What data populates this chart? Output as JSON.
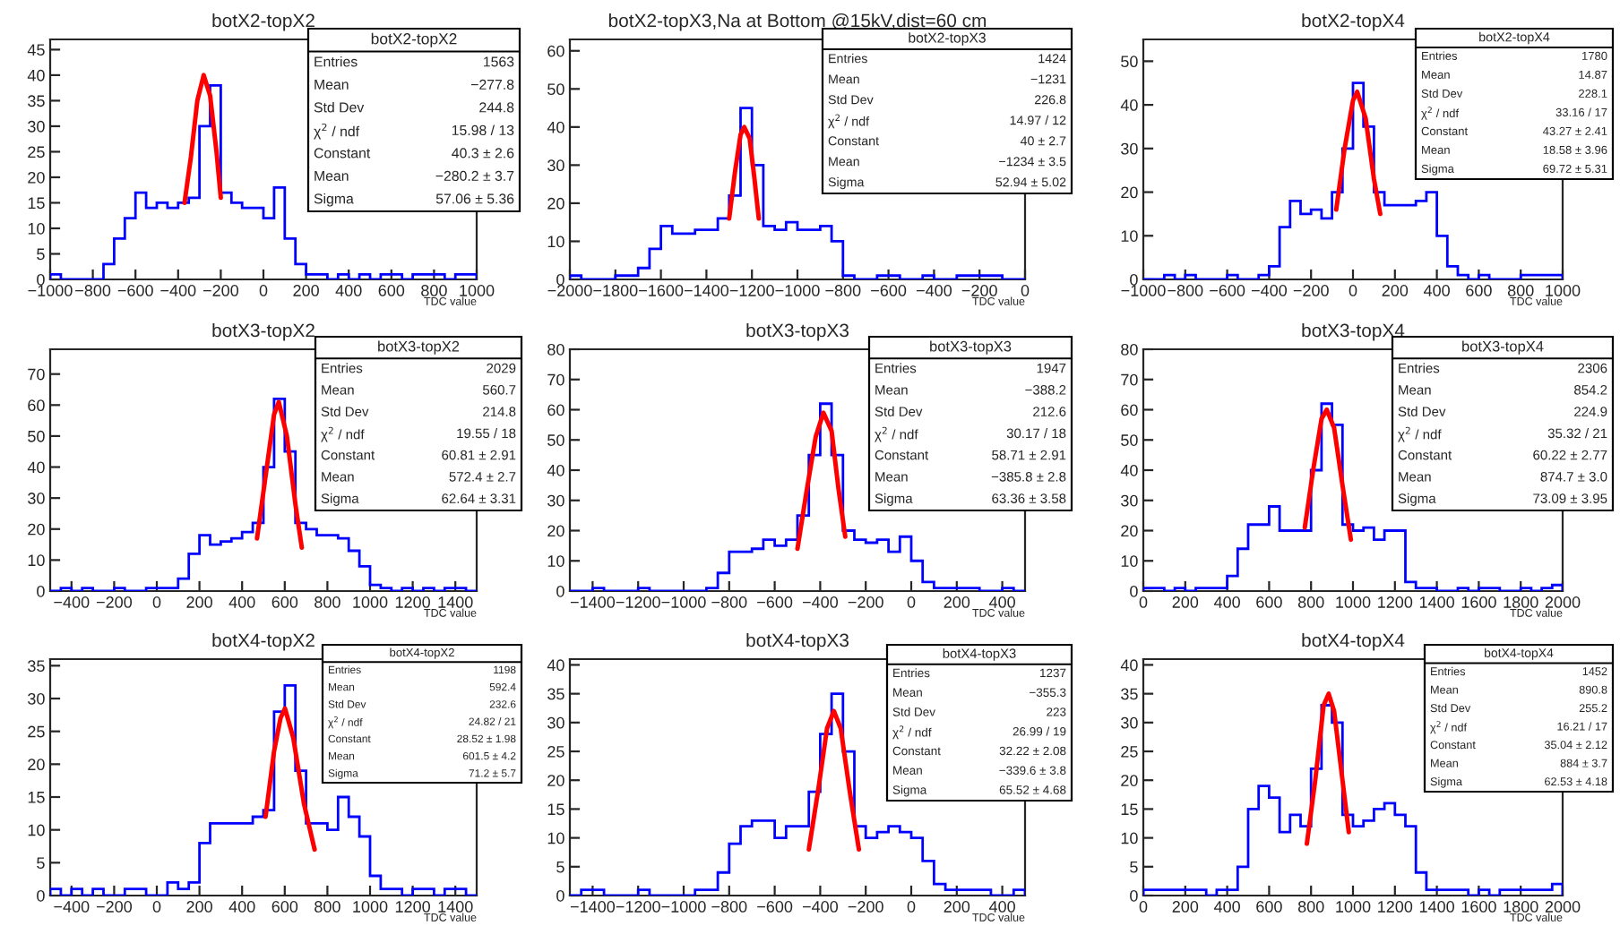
{
  "chart_data": [
    {
      "type": "histogram",
      "title": "botX2-topX2",
      "xlabel": "TDC value",
      "xlim": [
        -1000,
        1000
      ],
      "xticks": [
        -1000,
        -800,
        -600,
        -400,
        -200,
        0,
        200,
        400,
        600,
        800,
        1000
      ],
      "ylim": [
        0,
        47
      ],
      "yticks": [
        0,
        5,
        10,
        15,
        20,
        25,
        30,
        35,
        40,
        45
      ],
      "annotations": [
        "botX2-topX2",
        "Entries\t1563",
        "Mean\t−277.8",
        "Std Dev\t244.8",
        "χ$^{2}$ / ndf\t15.98 / 13",
        "Constant\t40.3 ± 2.6",
        "Mean\t−280.2 ± 3.7",
        "Sigma\t57.06 ± 5.36"
      ],
      "series": [
        {
          "type": "histogram",
          "color": "#0000ff",
          "bins": [
            -1000,
            -950,
            -900,
            -850,
            -800,
            -750,
            -700,
            -650,
            -600,
            -550,
            -500,
            -450,
            -400,
            -350,
            -300,
            -250,
            -200,
            -150,
            -100,
            -50,
            0,
            50,
            100,
            150,
            200,
            250,
            300,
            350,
            400,
            450,
            500,
            550,
            600,
            650,
            700,
            750,
            800,
            850,
            900,
            950,
            1000
          ],
          "values": [
            1,
            0,
            0,
            0,
            0,
            3,
            8,
            12,
            17,
            14,
            15,
            14,
            15,
            16,
            30,
            38,
            17,
            15,
            14,
            14,
            12,
            18,
            8,
            3,
            1,
            1,
            0,
            1,
            0,
            1,
            0,
            1,
            1,
            0,
            1,
            1,
            1,
            0,
            1,
            1
          ]
        },
        {
          "type": "line",
          "color": "#ff0000",
          "x": [
            -370,
            -340,
            -310,
            -280,
            -250,
            -220,
            -200
          ],
          "values": [
            15,
            24,
            35,
            40,
            36,
            25,
            16
          ]
        }
      ]
    },
    {
      "type": "histogram",
      "title": "botX2-topX3,Na at Bottom @15kV,dist=60 cm",
      "xlabel": "TDC value",
      "xlim": [
        -2000,
        0
      ],
      "xticks": [
        -2000,
        -1800,
        -1600,
        -1400,
        -1200,
        -1000,
        -800,
        -600,
        -400,
        -200,
        0
      ],
      "ylim": [
        0,
        63
      ],
      "yticks": [
        0,
        10,
        20,
        30,
        40,
        50,
        60
      ],
      "annotations": [
        "botX2-topX3",
        "Entries\t1424",
        "Mean\t−1231",
        "Std Dev\t226.8",
        "χ$^{2}$ / ndf\t14.97 / 12",
        "Constant\t40 ± 2.7",
        "Mean\t−1234 ± 3.5",
        "Sigma\t52.94 ± 5.02"
      ],
      "series": [
        {
          "type": "histogram",
          "color": "#0000ff",
          "bins": [
            -2000,
            -1950,
            -1900,
            -1850,
            -1800,
            -1750,
            -1700,
            -1650,
            -1600,
            -1550,
            -1500,
            -1450,
            -1400,
            -1350,
            -1300,
            -1250,
            -1200,
            -1150,
            -1100,
            -1050,
            -1000,
            -950,
            -900,
            -850,
            -800,
            -750,
            -700,
            -650,
            -600,
            -550,
            -500,
            -450,
            -400,
            -350,
            -300,
            -250,
            -200,
            -150,
            -100,
            -50,
            0
          ],
          "values": [
            1,
            0,
            0,
            0,
            1,
            1,
            3,
            8,
            14,
            12,
            12,
            13,
            13,
            16,
            22,
            45,
            30,
            14,
            13,
            15,
            13,
            13,
            14,
            10,
            1,
            0,
            0,
            1,
            1,
            0,
            0,
            1,
            0,
            0,
            1,
            1,
            1,
            1,
            0,
            0
          ]
        },
        {
          "type": "line",
          "color": "#ff0000",
          "x": [
            -1300,
            -1275,
            -1250,
            -1234,
            -1210,
            -1190,
            -1170
          ],
          "values": [
            16,
            28,
            38,
            40,
            37,
            27,
            16
          ]
        }
      ]
    },
    {
      "type": "histogram",
      "title": "botX2-topX4",
      "xlabel": "TDC value",
      "xlim": [
        -1000,
        1000
      ],
      "xticks": [
        -1000,
        -800,
        -600,
        -400,
        -200,
        0,
        200,
        400,
        600,
        800,
        1000
      ],
      "ylim": [
        0,
        55
      ],
      "yticks": [
        0,
        10,
        20,
        30,
        40,
        50
      ],
      "annotations": [
        "botX2-topX4",
        "Entries\t1780",
        "Mean\t14.87",
        "Std Dev\t228.1",
        "χ$^{2}$ / ndf\t33.16 / 17",
        "Constant\t43.27 ± 2.41",
        "Mean\t18.58 ± 3.96",
        "Sigma\t69.72 ± 5.31"
      ],
      "series": [
        {
          "type": "histogram",
          "color": "#0000ff",
          "bins": [
            -1000,
            -950,
            -900,
            -850,
            -800,
            -750,
            -700,
            -650,
            -600,
            -550,
            -500,
            -450,
            -400,
            -350,
            -300,
            -250,
            -200,
            -150,
            -100,
            -50,
            0,
            50,
            100,
            150,
            200,
            250,
            300,
            350,
            400,
            450,
            500,
            550,
            600,
            650,
            700,
            750,
            800,
            850,
            900,
            950,
            1000
          ],
          "values": [
            0,
            0,
            1,
            0,
            1,
            0,
            0,
            0,
            1,
            0,
            0,
            1,
            3,
            12,
            18,
            15,
            16,
            14,
            20,
            30,
            45,
            35,
            20,
            17,
            17,
            17,
            18,
            20,
            10,
            3,
            1,
            0,
            1,
            0,
            0,
            0,
            1,
            1,
            1,
            1
          ]
        },
        {
          "type": "line",
          "color": "#ff0000",
          "x": [
            -80,
            -40,
            0,
            20,
            60,
            100,
            130
          ],
          "values": [
            16,
            30,
            41,
            43,
            37,
            23,
            15
          ]
        }
      ]
    },
    {
      "type": "histogram",
      "title": "botX3-topX2",
      "xlabel": "TDC value",
      "xlim": [
        -500,
        1500
      ],
      "xticks": [
        -400,
        -200,
        0,
        200,
        400,
        600,
        800,
        1000,
        1200,
        1400
      ],
      "ylim": [
        0,
        78
      ],
      "yticks": [
        0,
        10,
        20,
        30,
        40,
        50,
        60,
        70
      ],
      "annotations": [
        "botX3-topX2",
        "Entries\t2029",
        "Mean\t560.7",
        "Std Dev\t214.8",
        "χ$^{2}$ / ndf\t19.55 / 18",
        "Constant\t60.81 ± 2.91",
        "Mean\t572.4 ± 2.7",
        "Sigma\t62.64 ± 3.31"
      ],
      "series": [
        {
          "type": "histogram",
          "color": "#0000ff",
          "bins": [
            -500,
            -450,
            -400,
            -350,
            -300,
            -250,
            -200,
            -150,
            -100,
            -50,
            0,
            50,
            100,
            150,
            200,
            250,
            300,
            350,
            400,
            450,
            500,
            550,
            600,
            650,
            700,
            750,
            800,
            850,
            900,
            950,
            1000,
            1050,
            1100,
            1150,
            1200,
            1250,
            1300,
            1350,
            1400,
            1450,
            1500
          ],
          "values": [
            0,
            1,
            0,
            1,
            0,
            0,
            1,
            0,
            0,
            1,
            1,
            1,
            4,
            12,
            18,
            15,
            16,
            17,
            19,
            22,
            40,
            62,
            45,
            22,
            20,
            18,
            18,
            17,
            13,
            8,
            2,
            1,
            0,
            1,
            0,
            1,
            0,
            1,
            1,
            0
          ]
        },
        {
          "type": "line",
          "color": "#ff0000",
          "x": [
            470,
            510,
            550,
            572,
            610,
            650,
            680
          ],
          "values": [
            17,
            37,
            57,
            61,
            50,
            28,
            14
          ]
        }
      ]
    },
    {
      "type": "histogram",
      "title": "botX3-topX3",
      "xlabel": "TDC value",
      "xlim": [
        -1500,
        500
      ],
      "xticks": [
        -1400,
        -1200,
        -1000,
        -800,
        -600,
        -400,
        -200,
        0,
        200,
        400
      ],
      "ylim": [
        0,
        80
      ],
      "yticks": [
        0,
        10,
        20,
        30,
        40,
        50,
        60,
        70,
        80
      ],
      "annotations": [
        "botX3-topX3",
        "Entries\t1947",
        "Mean\t−388.2",
        "Std Dev\t212.6",
        "χ$^{2}$ / ndf\t30.17 / 18",
        "Constant\t58.71 ± 2.91",
        "Mean\t−385.8 ± 2.8",
        "Sigma\t63.36 ± 3.58"
      ],
      "series": [
        {
          "type": "histogram",
          "color": "#0000ff",
          "bins": [
            -1500,
            -1450,
            -1400,
            -1350,
            -1300,
            -1250,
            -1200,
            -1150,
            -1100,
            -1050,
            -1000,
            -950,
            -900,
            -850,
            -800,
            -750,
            -700,
            -650,
            -600,
            -550,
            -500,
            -450,
            -400,
            -350,
            -300,
            -250,
            -200,
            -150,
            -100,
            -50,
            0,
            50,
            100,
            150,
            200,
            250,
            300,
            350,
            400,
            450,
            500
          ],
          "values": [
            0,
            0,
            1,
            0,
            0,
            0,
            1,
            0,
            0,
            0,
            0,
            0,
            1,
            6,
            13,
            13,
            14,
            17,
            15,
            17,
            25,
            45,
            62,
            45,
            20,
            17,
            16,
            17,
            13,
            18,
            10,
            3,
            1,
            1,
            1,
            1,
            0,
            0,
            1,
            0
          ]
        },
        {
          "type": "line",
          "color": "#ff0000",
          "x": [
            -500,
            -460,
            -420,
            -386,
            -350,
            -320,
            -290
          ],
          "values": [
            14,
            33,
            51,
            59,
            53,
            34,
            18
          ]
        }
      ]
    },
    {
      "type": "histogram",
      "title": "botX3-topX4",
      "xlabel": "TDC value",
      "xlim": [
        0,
        2000
      ],
      "xticks": [
        0,
        200,
        400,
        600,
        800,
        1000,
        1200,
        1400,
        1600,
        1800,
        2000
      ],
      "ylim": [
        0,
        80
      ],
      "yticks": [
        0,
        10,
        20,
        30,
        40,
        50,
        60,
        70,
        80
      ],
      "annotations": [
        "botX3-topX4",
        "Entries\t2306",
        "Mean\t854.2",
        "Std Dev\t224.9",
        "χ$^{2}$ / ndf\t35.32 / 21",
        "Constant\t60.22 ± 2.77",
        "Mean\t874.7 ± 3.0",
        "Sigma\t73.09 ± 3.95"
      ],
      "series": [
        {
          "type": "histogram",
          "color": "#0000ff",
          "bins": [
            0,
            50,
            100,
            150,
            200,
            250,
            300,
            350,
            400,
            450,
            500,
            550,
            600,
            650,
            700,
            750,
            800,
            850,
            900,
            950,
            1000,
            1050,
            1100,
            1150,
            1200,
            1250,
            1300,
            1350,
            1400,
            1450,
            1500,
            1550,
            1600,
            1650,
            1700,
            1750,
            1800,
            1850,
            1900,
            1950,
            2000
          ],
          "values": [
            1,
            1,
            0,
            1,
            0,
            1,
            1,
            1,
            5,
            14,
            22,
            22,
            28,
            20,
            20,
            20,
            40,
            62,
            55,
            22,
            20,
            21,
            17,
            20,
            20,
            3,
            1,
            1,
            0,
            0,
            1,
            0,
            1,
            1,
            0,
            0,
            1,
            0,
            1,
            2
          ]
        },
        {
          "type": "line",
          "color": "#ff0000",
          "x": [
            770,
            810,
            850,
            875,
            910,
            950,
            990
          ],
          "values": [
            21,
            40,
            57,
            60,
            54,
            35,
            17
          ]
        }
      ]
    },
    {
      "type": "histogram",
      "title": "botX4-topX2",
      "xlabel": "TDC value",
      "xlim": [
        -500,
        1500
      ],
      "xticks": [
        -400,
        -200,
        0,
        200,
        400,
        600,
        800,
        1000,
        1200,
        1400
      ],
      "ylim": [
        0,
        36
      ],
      "yticks": [
        0,
        5,
        10,
        15,
        20,
        25,
        30,
        35
      ],
      "annotations": [
        "botX4-topX2",
        "Entries\t1198",
        "Mean\t592.4",
        "Std Dev\t232.6",
        "χ$^{2}$ / ndf\t24.82 / 21",
        "Constant\t28.52 ± 1.98",
        "Mean\t601.5 ± 4.2",
        "Sigma\t71.2 ± 5.7"
      ],
      "series": [
        {
          "type": "histogram",
          "color": "#0000ff",
          "bins": [
            -500,
            -450,
            -400,
            -350,
            -300,
            -250,
            -200,
            -150,
            -100,
            -50,
            0,
            50,
            100,
            150,
            200,
            250,
            300,
            350,
            400,
            450,
            500,
            550,
            600,
            650,
            700,
            750,
            800,
            850,
            900,
            950,
            1000,
            1050,
            1100,
            1150,
            1200,
            1250,
            1300,
            1350,
            1400,
            1450,
            1500
          ],
          "values": [
            1,
            0,
            1,
            0,
            1,
            0,
            0,
            1,
            1,
            0,
            0,
            2,
            1,
            2,
            8,
            11,
            11,
            11,
            11,
            12,
            13,
            28,
            32,
            19,
            11,
            11,
            10,
            15,
            12,
            9,
            3,
            1,
            1,
            0,
            1,
            1,
            0,
            1,
            1,
            0
          ]
        },
        {
          "type": "line",
          "color": "#ff0000",
          "x": [
            510,
            550,
            580,
            601,
            640,
            690,
            740
          ],
          "values": [
            12,
            22,
            27,
            28.5,
            24,
            14,
            7
          ]
        }
      ]
    },
    {
      "type": "histogram",
      "title": "botX4-topX3",
      "xlabel": "TDC value",
      "xlim": [
        -1500,
        500
      ],
      "xticks": [
        -1400,
        -1200,
        -1000,
        -800,
        -600,
        -400,
        -200,
        0,
        200,
        400
      ],
      "ylim": [
        0,
        41
      ],
      "yticks": [
        0,
        5,
        10,
        15,
        20,
        25,
        30,
        35,
        40
      ],
      "annotations": [
        "botX4-topX3",
        "Entries\t1237",
        "Mean\t−355.3",
        "Std Dev\t223",
        "χ$^{2}$ / ndf\t26.99 / 19",
        "Constant\t32.22 ± 2.08",
        "Mean\t−339.6 ± 3.8",
        "Sigma\t65.52 ± 4.68"
      ],
      "series": [
        {
          "type": "histogram",
          "color": "#0000ff",
          "bins": [
            -1500,
            -1450,
            -1400,
            -1350,
            -1300,
            -1250,
            -1200,
            -1150,
            -1100,
            -1050,
            -1000,
            -950,
            -900,
            -850,
            -800,
            -750,
            -700,
            -650,
            -600,
            -550,
            -500,
            -450,
            -400,
            -350,
            -300,
            -250,
            -200,
            -150,
            -100,
            -50,
            0,
            50,
            100,
            150,
            200,
            250,
            300,
            350,
            400,
            450,
            500
          ],
          "values": [
            0,
            1,
            1,
            0,
            0,
            0,
            1,
            0,
            0,
            0,
            0,
            1,
            1,
            4,
            9,
            12,
            13,
            13,
            10,
            12,
            12,
            18,
            28,
            35,
            25,
            12,
            10,
            11,
            12,
            11,
            10,
            6,
            2,
            1,
            1,
            1,
            1,
            0,
            0,
            1
          ]
        },
        {
          "type": "line",
          "color": "#ff0000",
          "x": [
            -450,
            -410,
            -370,
            -340,
            -310,
            -270,
            -230
          ],
          "values": [
            8,
            18,
            29,
            32,
            29,
            18,
            8
          ]
        }
      ]
    },
    {
      "type": "histogram",
      "title": "botX4-topX4",
      "xlabel": "TDC value",
      "xlim": [
        0,
        2000
      ],
      "xticks": [
        0,
        200,
        400,
        600,
        800,
        1000,
        1200,
        1400,
        1600,
        1800,
        2000
      ],
      "ylim": [
        0,
        41
      ],
      "yticks": [
        0,
        5,
        10,
        15,
        20,
        25,
        30,
        35,
        40
      ],
      "annotations": [
        "botX4-topX4",
        "Entries\t1452",
        "Mean\t890.8",
        "Std Dev\t255.2",
        "χ$^{2}$ / ndf\t16.21 / 17",
        "Constant\t35.04 ± 2.12",
        "Mean\t884 ± 3.7",
        "Sigma\t62.53 ± 4.18"
      ],
      "series": [
        {
          "type": "histogram",
          "color": "#0000ff",
          "bins": [
            0,
            50,
            100,
            150,
            200,
            250,
            300,
            350,
            400,
            450,
            500,
            550,
            600,
            650,
            700,
            750,
            800,
            850,
            900,
            950,
            1000,
            1050,
            1100,
            1150,
            1200,
            1250,
            1300,
            1350,
            1400,
            1450,
            1500,
            1550,
            1600,
            1650,
            1700,
            1750,
            1800,
            1850,
            1900,
            1950,
            2000
          ],
          "values": [
            1,
            1,
            1,
            1,
            1,
            1,
            0,
            1,
            1,
            5,
            15,
            19,
            17,
            11,
            14,
            12,
            22,
            33,
            30,
            14,
            12,
            13,
            15,
            16,
            14,
            12,
            4,
            1,
            1,
            1,
            1,
            0,
            1,
            0,
            1,
            1,
            1,
            1,
            1,
            2
          ]
        },
        {
          "type": "line",
          "color": "#ff0000",
          "x": [
            780,
            820,
            860,
            884,
            910,
            950,
            980
          ],
          "values": [
            9,
            20,
            33,
            35,
            32,
            20,
            11
          ]
        }
      ]
    }
  ]
}
